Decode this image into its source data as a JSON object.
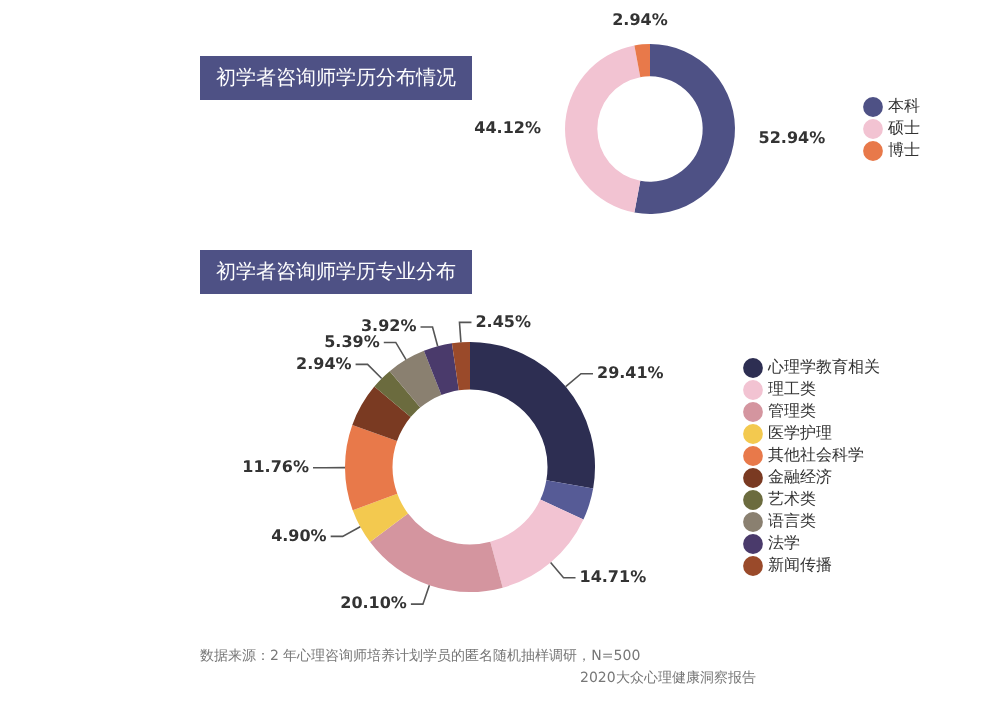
{
  "chart_data": [
    {
      "type": "donut",
      "title": "初学者咨询师学历分布情况",
      "categories": [
        "本科",
        "硕士",
        "博士"
      ],
      "values": [
        52.94,
        44.12,
        2.94
      ],
      "value_labels": [
        "52.94%",
        "44.12%",
        "2.94%"
      ],
      "colors": [
        "#4e5185",
        "#f2c3d2",
        "#e8794a"
      ],
      "legend": "right"
    },
    {
      "type": "donut",
      "title": "初学者咨询师学历专业分布",
      "categories": [
        "心理学教育相关",
        null,
        "理工类",
        "管理类",
        "医学护理",
        "其他社会科学",
        "金融经济",
        "艺术类",
        "语言类",
        "法学",
        "新闻传播"
      ],
      "values": [
        29.41,
        4.4,
        14.71,
        20.1,
        4.9,
        11.76,
        6,
        2.94,
        5.39,
        3.92,
        2.45
      ],
      "value_labels": [
        "29.41%",
        null,
        "14.71%",
        "20.10%",
        "4.90%",
        "11.76%",
        null,
        "2.94%",
        "5.39%",
        "3.92%",
        "2.45%"
      ],
      "colors": [
        "#2d2e52",
        "#565b96",
        "#f2c3d2",
        "#d4959f",
        "#f3c94f",
        "#e8794a",
        "#7a3a22",
        "#6b6b3e",
        "#8a8070",
        "#4a3a6b",
        "#9a4a2a"
      ],
      "legend": "right",
      "annotations": [
        "数据来源：2 年心理咨询师培养计划学员的匿名随机抽样调研，N=500",
        "2020大众心理健康洞察报告"
      ]
    }
  ]
}
